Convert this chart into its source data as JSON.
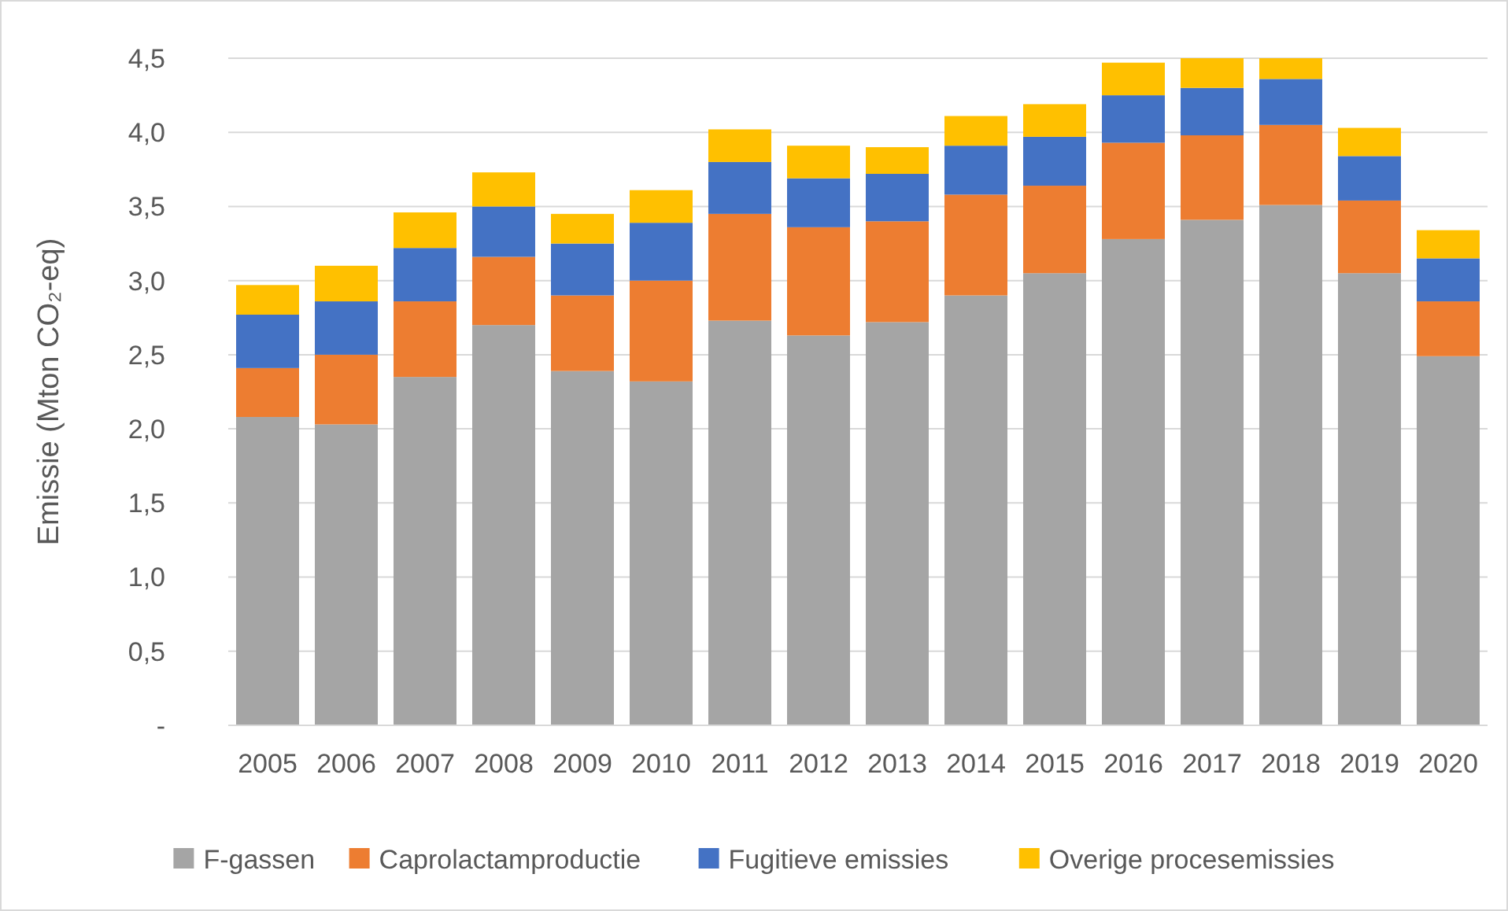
{
  "chart_data": {
    "type": "bar",
    "stacked": true,
    "ylabel": "Emissie (Mton CO₂-eq)",
    "categories": [
      "2005",
      "2006",
      "2007",
      "2008",
      "2009",
      "2010",
      "2011",
      "2012",
      "2013",
      "2014",
      "2015",
      "2016",
      "2017",
      "2018",
      "2019",
      "2020"
    ],
    "series": [
      {
        "name": "F-gassen",
        "color": "#a5a5a5",
        "values": [
          2.08,
          2.03,
          2.35,
          2.7,
          2.39,
          2.32,
          2.73,
          2.63,
          2.72,
          2.9,
          3.05,
          3.28,
          3.41,
          3.51,
          3.05,
          2.49
        ]
      },
      {
        "name": "Caprolactamproductie",
        "color": "#ed7d31",
        "values": [
          0.33,
          0.47,
          0.51,
          0.46,
          0.51,
          0.68,
          0.72,
          0.73,
          0.68,
          0.68,
          0.59,
          0.65,
          0.57,
          0.54,
          0.49,
          0.37
        ]
      },
      {
        "name": "Fugitieve emissies",
        "color": "#4472c4",
        "values": [
          0.36,
          0.36,
          0.36,
          0.34,
          0.35,
          0.39,
          0.35,
          0.33,
          0.32,
          0.33,
          0.33,
          0.32,
          0.32,
          0.31,
          0.3,
          0.29
        ]
      },
      {
        "name": "Overige procesemissies",
        "color": "#ffc000",
        "values": [
          0.2,
          0.24,
          0.24,
          0.23,
          0.2,
          0.22,
          0.22,
          0.22,
          0.18,
          0.2,
          0.22,
          0.22,
          0.2,
          0.14,
          0.19,
          0.19
        ]
      }
    ],
    "ylim": [
      0,
      4.5
    ],
    "yticks": [
      {
        "value": 0,
        "label": "-"
      },
      {
        "value": 0.5,
        "label": "0,5"
      },
      {
        "value": 1,
        "label": "1,0"
      },
      {
        "value": 1.5,
        "label": "1,5"
      },
      {
        "value": 2,
        "label": "2,0"
      },
      {
        "value": 2.5,
        "label": "2,5"
      },
      {
        "value": 3,
        "label": "3,0"
      },
      {
        "value": 3.5,
        "label": "3,5"
      },
      {
        "value": 4,
        "label": "4,0"
      },
      {
        "value": 4.5,
        "label": "4,5"
      }
    ],
    "grid": "y",
    "legend": "bottom"
  }
}
